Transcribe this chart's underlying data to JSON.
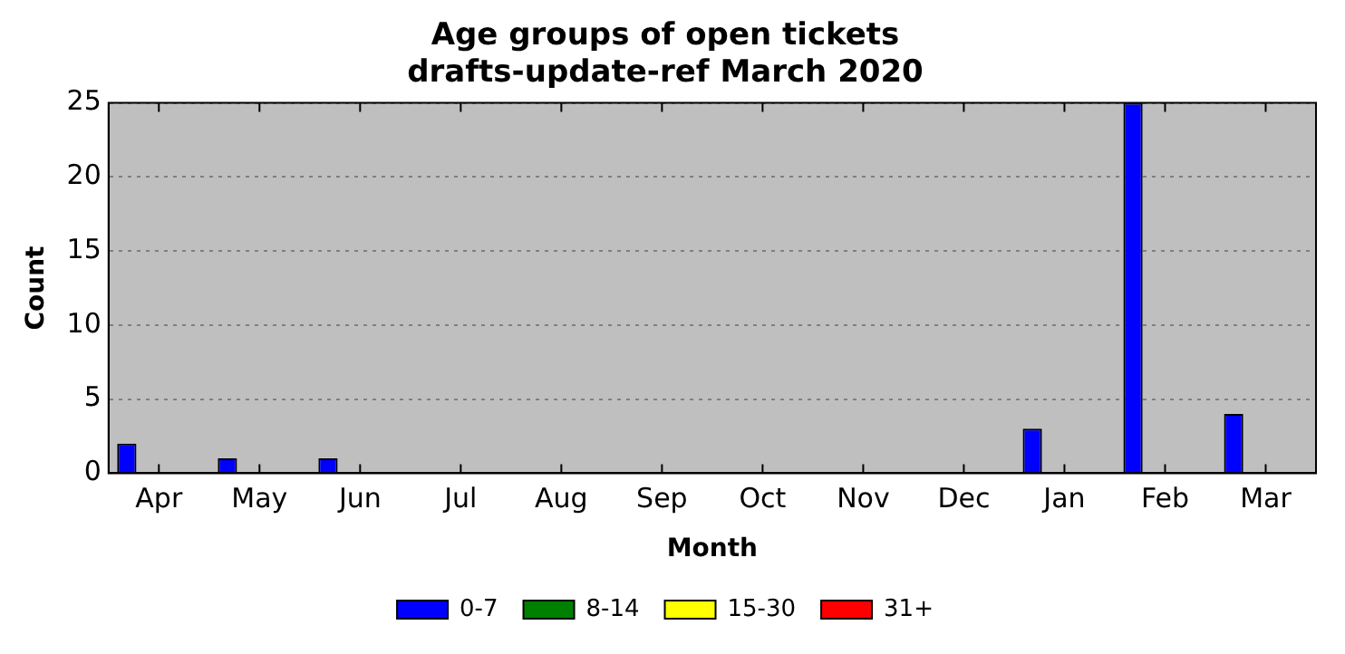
{
  "chart_data": {
    "type": "bar",
    "title": "Age groups of open tickets\ndrafts-update-ref March 2020",
    "xlabel": "Month",
    "ylabel": "Count",
    "categories": [
      "Apr",
      "May",
      "Jun",
      "Jul",
      "Aug",
      "Sep",
      "Oct",
      "Nov",
      "Dec",
      "Jan",
      "Feb",
      "Mar"
    ],
    "series": [
      {
        "name": "0-7",
        "color": "#0000ff",
        "values": [
          2,
          1,
          1,
          0,
          0,
          0,
          0,
          0,
          0,
          3,
          25,
          4
        ]
      },
      {
        "name": "8-14",
        "color": "#008000",
        "values": [
          0,
          0,
          0,
          0,
          0,
          0,
          0,
          0,
          0,
          0,
          0,
          0
        ]
      },
      {
        "name": "15-30",
        "color": "#ffff00",
        "values": [
          0,
          0,
          0,
          0,
          0,
          0,
          0,
          0,
          0,
          0,
          0,
          0
        ]
      },
      {
        "name": "31+",
        "color": "#ff0000",
        "values": [
          0,
          0,
          0,
          0,
          0,
          0,
          0,
          0,
          0,
          0,
          0,
          0
        ]
      }
    ],
    "ylim": [
      0,
      25
    ],
    "yticks": [
      0,
      5,
      10,
      15,
      20,
      25
    ],
    "grid": "y",
    "legend": "bottom"
  }
}
